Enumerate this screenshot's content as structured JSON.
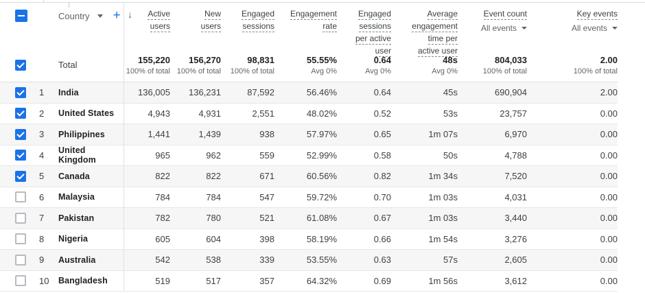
{
  "colors": {
    "accent_blue": "#1a73e8",
    "header_text": "#3c4043",
    "secondary_text": "#5f6368",
    "body_text": "#202124",
    "stripe_row": "#f6f6f7",
    "row_border": "#e7e7e8",
    "divider": "#e0e0e0"
  },
  "header": {
    "select_all_state": "indeterminate",
    "dimension_label": "Country",
    "add_icon": "+",
    "sort_icon": "↓",
    "columns": [
      {
        "id": "active_users",
        "lines": [
          "Active",
          "users"
        ],
        "sorted": true
      },
      {
        "id": "new_users",
        "lines": [
          "New",
          "users"
        ]
      },
      {
        "id": "engaged_sessions",
        "lines": [
          "Engaged",
          "sessions"
        ]
      },
      {
        "id": "engagement_rate",
        "lines": [
          "Engagement",
          "rate"
        ]
      },
      {
        "id": "engaged_sessions_per_active_user",
        "lines": [
          "Engaged",
          "sessions",
          "per active",
          "user"
        ]
      },
      {
        "id": "average_engagement_time_per_active_user",
        "lines": [
          "Average",
          "engagement",
          "time per",
          "active user"
        ]
      },
      {
        "id": "event_count",
        "lines": [
          "Event count"
        ],
        "filter": "All events"
      },
      {
        "id": "key_events",
        "lines": [
          "Key events"
        ],
        "filter": "All events"
      }
    ]
  },
  "total": {
    "label": "Total",
    "checked": true,
    "values": [
      "155,220",
      "156,270",
      "98,831",
      "55.55%",
      "0.64",
      "48s",
      "804,033",
      "2.00"
    ],
    "subs": [
      "100% of total",
      "100% of total",
      "100% of total",
      "Avg 0%",
      "Avg 0%",
      "Avg 0%",
      "100% of total",
      "100% of total"
    ]
  },
  "rows": [
    {
      "index": "1",
      "country": "India",
      "checked": true,
      "values": [
        "136,005",
        "136,231",
        "87,592",
        "56.46%",
        "0.64",
        "45s",
        "690,904",
        "2.00"
      ]
    },
    {
      "index": "2",
      "country": "United States",
      "checked": true,
      "values": [
        "4,943",
        "4,931",
        "2,551",
        "48.02%",
        "0.52",
        "53s",
        "23,757",
        "0.00"
      ]
    },
    {
      "index": "3",
      "country": "Philippines",
      "checked": true,
      "values": [
        "1,441",
        "1,439",
        "938",
        "57.97%",
        "0.65",
        "1m 07s",
        "6,970",
        "0.00"
      ]
    },
    {
      "index": "4",
      "country": "United Kingdom",
      "checked": true,
      "values": [
        "965",
        "962",
        "559",
        "52.99%",
        "0.58",
        "50s",
        "4,788",
        "0.00"
      ]
    },
    {
      "index": "5",
      "country": "Canada",
      "checked": true,
      "values": [
        "822",
        "822",
        "671",
        "60.56%",
        "0.82",
        "1m 34s",
        "7,520",
        "0.00"
      ]
    },
    {
      "index": "6",
      "country": "Malaysia",
      "checked": false,
      "values": [
        "784",
        "784",
        "547",
        "59.72%",
        "0.70",
        "1m 03s",
        "4,031",
        "0.00"
      ]
    },
    {
      "index": "7",
      "country": "Pakistan",
      "checked": false,
      "values": [
        "782",
        "780",
        "521",
        "61.08%",
        "0.67",
        "1m 03s",
        "3,440",
        "0.00"
      ]
    },
    {
      "index": "8",
      "country": "Nigeria",
      "checked": false,
      "values": [
        "605",
        "604",
        "398",
        "58.19%",
        "0.66",
        "1m 54s",
        "3,276",
        "0.00"
      ]
    },
    {
      "index": "9",
      "country": "Australia",
      "checked": false,
      "values": [
        "542",
        "538",
        "339",
        "53.55%",
        "0.63",
        "57s",
        "2,605",
        "0.00"
      ]
    },
    {
      "index": "10",
      "country": "Bangladesh",
      "checked": false,
      "values": [
        "519",
        "517",
        "357",
        "64.32%",
        "0.69",
        "1m 56s",
        "3,612",
        "0.00"
      ]
    }
  ]
}
